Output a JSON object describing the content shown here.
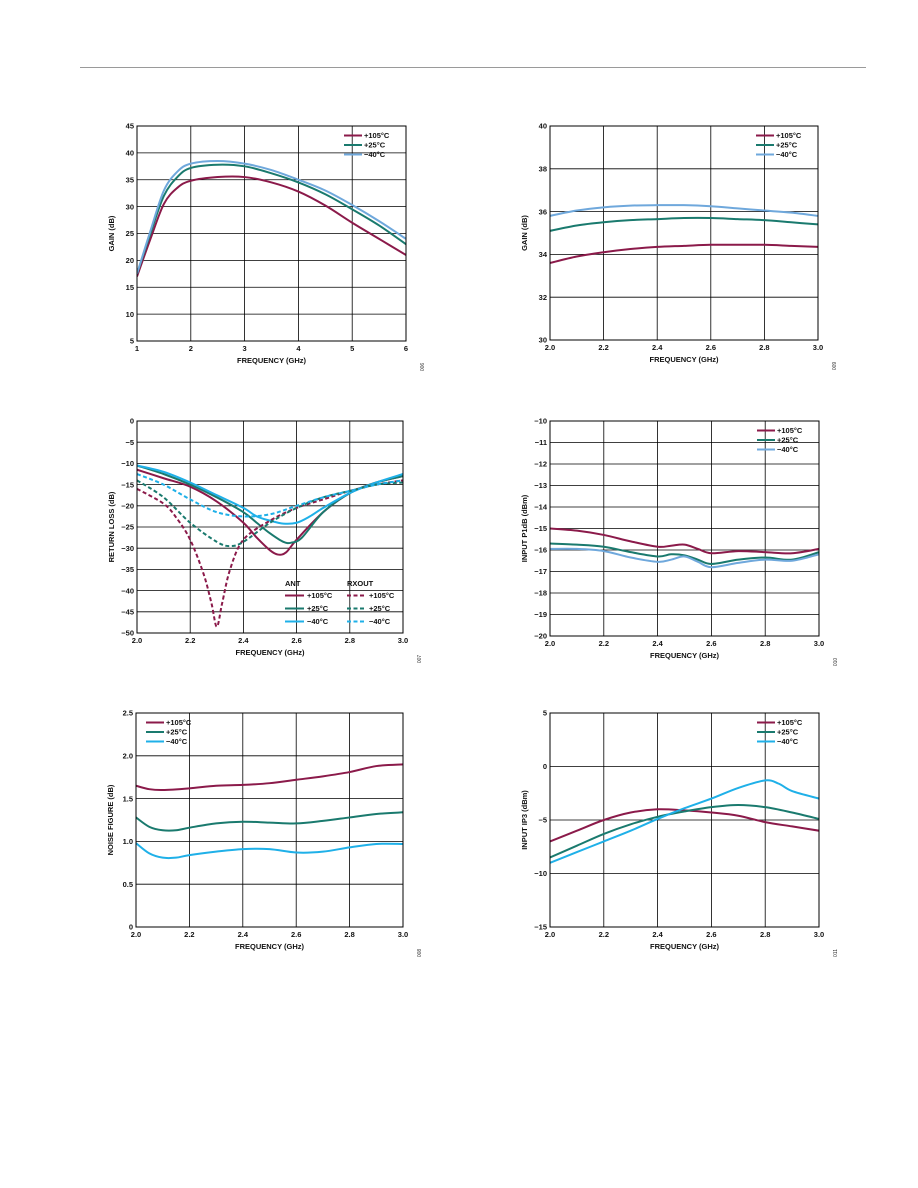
{
  "colors": {
    "hot": "#8b1a4a",
    "room": "#1a7a6e",
    "cold_light": "#6fa8dc",
    "cold_bright": "#1fb0e8",
    "grid": "#000000"
  },
  "chart_data": [
    {
      "type": "line",
      "id_label": "006",
      "xlabel": "FREQUENCY (GHz)",
      "ylabel": "GAIN (dB)",
      "xlim": [
        1,
        6
      ],
      "ylim": [
        5,
        45
      ],
      "xticks": [
        1,
        2,
        3,
        4,
        5,
        6
      ],
      "xtick_labels": [
        "1",
        "2",
        "3",
        "4",
        "5",
        "6"
      ],
      "yticks": [
        5,
        10,
        15,
        20,
        25,
        30,
        35,
        40,
        45
      ],
      "ytick_labels": [
        "5",
        "10",
        "15",
        "20",
        "25",
        "30",
        "35",
        "40",
        "45"
      ],
      "grid": true,
      "legend": {
        "position": "top-right"
      },
      "series": [
        {
          "name": "+105°C",
          "color": "#8b1a4a",
          "dash": false,
          "x": [
            1,
            1.25,
            1.5,
            1.75,
            2,
            2.5,
            3,
            3.5,
            4,
            4.5,
            5,
            5.5,
            6
          ],
          "y": [
            17,
            24,
            30.5,
            33.5,
            34.8,
            35.5,
            35.5,
            34.5,
            32.8,
            30.2,
            27,
            24,
            21
          ]
        },
        {
          "name": "+25°C",
          "color": "#1a7a6e",
          "dash": false,
          "x": [
            1,
            1.25,
            1.5,
            1.75,
            2,
            2.5,
            3,
            3.5,
            4,
            4.5,
            5,
            5.5,
            6
          ],
          "y": [
            17.5,
            25,
            32,
            35.5,
            37.2,
            37.8,
            37.5,
            36.2,
            34.5,
            32.3,
            29.5,
            26.5,
            23
          ]
        },
        {
          "name": "−40°C",
          "color": "#6fa8dc",
          "dash": false,
          "x": [
            1,
            1.25,
            1.5,
            1.75,
            2,
            2.5,
            3,
            3.5,
            4,
            4.5,
            5,
            5.5,
            6
          ],
          "y": [
            17.5,
            25.5,
            33,
            36.5,
            38,
            38.5,
            38,
            36.8,
            35,
            33,
            30.3,
            27.3,
            24
          ]
        }
      ]
    },
    {
      "type": "line",
      "id_label": "009",
      "xlabel": "FREQUENCY (GHz)",
      "ylabel": "GAIN (dB)",
      "xlim": [
        2.0,
        3.0
      ],
      "ylim": [
        30,
        40
      ],
      "xticks": [
        2.0,
        2.2,
        2.4,
        2.6,
        2.8,
        3.0
      ],
      "xtick_labels": [
        "2.0",
        "2.2",
        "2.4",
        "2.6",
        "2.8",
        "3.0"
      ],
      "yticks": [
        30,
        32,
        34,
        36,
        38,
        40
      ],
      "ytick_labels": [
        "30",
        "32",
        "34",
        "36",
        "38",
        "40"
      ],
      "grid": true,
      "legend": {
        "position": "top-right"
      },
      "series": [
        {
          "name": "+105°C",
          "color": "#8b1a4a",
          "dash": false,
          "x": [
            2.0,
            2.1,
            2.2,
            2.3,
            2.4,
            2.5,
            2.6,
            2.7,
            2.8,
            2.9,
            3.0
          ],
          "y": [
            33.6,
            33.9,
            34.1,
            34.25,
            34.35,
            34.4,
            34.45,
            34.45,
            34.45,
            34.4,
            34.35
          ]
        },
        {
          "name": "+25°C",
          "color": "#1a7a6e",
          "dash": false,
          "x": [
            2.0,
            2.1,
            2.2,
            2.3,
            2.4,
            2.5,
            2.6,
            2.7,
            2.8,
            2.9,
            3.0
          ],
          "y": [
            35.1,
            35.35,
            35.5,
            35.6,
            35.65,
            35.7,
            35.7,
            35.65,
            35.6,
            35.5,
            35.4
          ]
        },
        {
          "name": "−40°C",
          "color": "#6fa8dc",
          "dash": false,
          "x": [
            2.0,
            2.1,
            2.2,
            2.3,
            2.4,
            2.5,
            2.6,
            2.7,
            2.8,
            2.9,
            3.0
          ],
          "y": [
            35.8,
            36.05,
            36.2,
            36.28,
            36.3,
            36.3,
            36.25,
            36.15,
            36.05,
            35.95,
            35.8
          ]
        }
      ]
    },
    {
      "type": "line",
      "id_label": "007",
      "xlabel": "FREQUENCY (GHz)",
      "ylabel": "RETURN LOSS (dB)",
      "xlim": [
        2.0,
        3.0
      ],
      "ylim": [
        -50,
        0
      ],
      "xticks": [
        2.0,
        2.2,
        2.4,
        2.6,
        2.8,
        3.0
      ],
      "xtick_labels": [
        "2.0",
        "2.2",
        "2.4",
        "2.6",
        "2.8",
        "3.0"
      ],
      "yticks": [
        -50,
        -45,
        -40,
        -35,
        -30,
        -25,
        -20,
        -15,
        -10,
        -5,
        0
      ],
      "ytick_labels": [
        "−50",
        "−45",
        "−40",
        "−35",
        "−30",
        "−25",
        "−20",
        "−15",
        "−10",
        "−5",
        "0"
      ],
      "grid": true,
      "legend": {
        "position": "bottom-right",
        "columns": [
          "ANT",
          "RXOUT"
        ]
      },
      "series": [
        {
          "name": "+105°C",
          "group": "ANT",
          "color": "#8b1a4a",
          "dash": false,
          "x": [
            2.0,
            2.1,
            2.2,
            2.3,
            2.4,
            2.45,
            2.5,
            2.53,
            2.56,
            2.6,
            2.7,
            2.8,
            2.9,
            3.0
          ],
          "y": [
            -11.5,
            -13.5,
            -15.5,
            -19,
            -24,
            -27.5,
            -30.5,
            -31.5,
            -31,
            -28,
            -21.5,
            -17,
            -14.5,
            -13
          ]
        },
        {
          "name": "+25°C",
          "group": "ANT",
          "color": "#1a7a6e",
          "dash": false,
          "x": [
            2.0,
            2.1,
            2.2,
            2.3,
            2.4,
            2.45,
            2.5,
            2.55,
            2.58,
            2.62,
            2.7,
            2.8,
            2.9,
            3.0
          ],
          "y": [
            -10.5,
            -12.5,
            -15,
            -18,
            -21.5,
            -24,
            -26.5,
            -28.5,
            -28.7,
            -27.5,
            -21.5,
            -17,
            -14.5,
            -13
          ]
        },
        {
          "name": "−40°C",
          "group": "ANT",
          "color": "#1fb0e8",
          "dash": false,
          "x": [
            2.0,
            2.1,
            2.2,
            2.3,
            2.4,
            2.45,
            2.5,
            2.55,
            2.6,
            2.65,
            2.7,
            2.8,
            2.9,
            3.0
          ],
          "y": [
            -10.5,
            -12,
            -14.5,
            -17.5,
            -20.5,
            -22.5,
            -23.5,
            -24.2,
            -24,
            -22.5,
            -20.5,
            -17,
            -14.5,
            -12.5
          ]
        },
        {
          "name": "+105°C",
          "group": "RXOUT",
          "color": "#8b1a4a",
          "dash": true,
          "x": [
            2.0,
            2.1,
            2.15,
            2.2,
            2.25,
            2.28,
            2.3,
            2.32,
            2.35,
            2.4,
            2.5,
            2.6,
            2.7,
            2.8,
            2.9,
            3.0
          ],
          "y": [
            -16,
            -19.5,
            -23,
            -28,
            -36,
            -43,
            -48.5,
            -43,
            -35,
            -28,
            -23.5,
            -20.5,
            -18.5,
            -16.5,
            -15,
            -14
          ]
        },
        {
          "name": "+25°C",
          "group": "RXOUT",
          "color": "#1a7a6e",
          "dash": true,
          "x": [
            2.0,
            2.1,
            2.2,
            2.3,
            2.35,
            2.4,
            2.5,
            2.6,
            2.7,
            2.8,
            2.9,
            3.0
          ],
          "y": [
            -14,
            -18,
            -24,
            -28.5,
            -29.5,
            -28.5,
            -24,
            -20.5,
            -18,
            -16.5,
            -15,
            -14.5
          ]
        },
        {
          "name": "−40°C",
          "group": "RXOUT",
          "color": "#1fb0e8",
          "dash": true,
          "x": [
            2.0,
            2.1,
            2.2,
            2.3,
            2.4,
            2.5,
            2.6,
            2.7,
            2.8,
            2.9,
            3.0
          ],
          "y": [
            -12.5,
            -15,
            -18.5,
            -21.5,
            -22.5,
            -22,
            -20,
            -18,
            -16.5,
            -15,
            -14
          ]
        }
      ]
    },
    {
      "type": "line",
      "id_label": "010",
      "xlabel": "FREQUENCY (GHz)",
      "ylabel": "INPUT P1dB (dBm)",
      "xlim": [
        2.0,
        3.0
      ],
      "ylim": [
        -20,
        -10
      ],
      "xticks": [
        2.0,
        2.2,
        2.4,
        2.6,
        2.8,
        3.0
      ],
      "xtick_labels": [
        "2.0",
        "2.2",
        "2.4",
        "2.6",
        "2.8",
        "3.0"
      ],
      "yticks": [
        -20,
        -19,
        -18,
        -17,
        -16,
        -15,
        -14,
        -13,
        -12,
        -11,
        -10
      ],
      "ytick_labels": [
        "−20",
        "−19",
        "−18",
        "−17",
        "−16",
        "−15",
        "−14",
        "−13",
        "−12",
        "−11",
        "−10"
      ],
      "grid": true,
      "legend": {
        "position": "top-right"
      },
      "series": [
        {
          "name": "+105°C",
          "color": "#8b1a4a",
          "dash": false,
          "x": [
            2.0,
            2.1,
            2.2,
            2.3,
            2.4,
            2.45,
            2.5,
            2.55,
            2.6,
            2.7,
            2.8,
            2.9,
            3.0
          ],
          "y": [
            -15.0,
            -15.1,
            -15.3,
            -15.6,
            -15.85,
            -15.8,
            -15.75,
            -15.95,
            -16.15,
            -16.05,
            -16.1,
            -16.15,
            -15.95
          ]
        },
        {
          "name": "+25°C",
          "color": "#1a7a6e",
          "dash": false,
          "x": [
            2.0,
            2.1,
            2.2,
            2.3,
            2.4,
            2.45,
            2.5,
            2.55,
            2.6,
            2.7,
            2.8,
            2.9,
            3.0
          ],
          "y": [
            -15.7,
            -15.75,
            -15.85,
            -16.1,
            -16.3,
            -16.2,
            -16.25,
            -16.45,
            -16.65,
            -16.45,
            -16.35,
            -16.45,
            -16.1
          ]
        },
        {
          "name": "−40°C",
          "color": "#6fa8dc",
          "dash": false,
          "x": [
            2.0,
            2.1,
            2.2,
            2.3,
            2.4,
            2.45,
            2.5,
            2.55,
            2.6,
            2.7,
            2.8,
            2.9,
            3.0
          ],
          "y": [
            -15.95,
            -15.95,
            -16.05,
            -16.35,
            -16.55,
            -16.45,
            -16.3,
            -16.55,
            -16.8,
            -16.6,
            -16.45,
            -16.5,
            -16.2
          ]
        }
      ]
    },
    {
      "type": "line",
      "id_label": "008",
      "xlabel": "FREQUENCY (GHz)",
      "ylabel": "NOISE FIGURE (dB)",
      "xlim": [
        2.0,
        3.0
      ],
      "ylim": [
        0,
        2.5
      ],
      "xticks": [
        2.0,
        2.2,
        2.4,
        2.6,
        2.8,
        3.0
      ],
      "xtick_labels": [
        "2.0",
        "2.2",
        "2.4",
        "2.6",
        "2.8",
        "3.0"
      ],
      "yticks": [
        0,
        0.5,
        1.0,
        1.5,
        2.0,
        2.5
      ],
      "ytick_labels": [
        "0",
        "0.5",
        "1.0",
        "1.5",
        "2.0",
        "2.5"
      ],
      "grid": true,
      "legend": {
        "position": "top-left"
      },
      "series": [
        {
          "name": "+105°C",
          "color": "#8b1a4a",
          "dash": false,
          "x": [
            2.0,
            2.05,
            2.1,
            2.2,
            2.3,
            2.4,
            2.5,
            2.6,
            2.7,
            2.8,
            2.9,
            3.0
          ],
          "y": [
            1.65,
            1.61,
            1.6,
            1.62,
            1.65,
            1.66,
            1.68,
            1.72,
            1.76,
            1.81,
            1.88,
            1.9
          ]
        },
        {
          "name": "+25°C",
          "color": "#1a7a6e",
          "dash": false,
          "x": [
            2.0,
            2.05,
            2.1,
            2.15,
            2.2,
            2.3,
            2.4,
            2.5,
            2.6,
            2.7,
            2.8,
            2.9,
            3.0
          ],
          "y": [
            1.28,
            1.17,
            1.13,
            1.13,
            1.16,
            1.21,
            1.23,
            1.22,
            1.21,
            1.24,
            1.28,
            1.32,
            1.34
          ]
        },
        {
          "name": "−40°C",
          "color": "#1fb0e8",
          "dash": false,
          "x": [
            2.0,
            2.05,
            2.1,
            2.15,
            2.2,
            2.3,
            2.4,
            2.5,
            2.6,
            2.7,
            2.8,
            2.9,
            3.0
          ],
          "y": [
            0.98,
            0.86,
            0.81,
            0.81,
            0.84,
            0.88,
            0.91,
            0.91,
            0.87,
            0.88,
            0.93,
            0.97,
            0.97
          ]
        }
      ]
    },
    {
      "type": "line",
      "id_label": "011",
      "xlabel": "FREQUENCY (GHz)",
      "ylabel": "INPUT IP3 (dBm)",
      "xlim": [
        2.0,
        3.0
      ],
      "ylim": [
        -15,
        5
      ],
      "xticks": [
        2.0,
        2.2,
        2.4,
        2.6,
        2.8,
        3.0
      ],
      "xtick_labels": [
        "2.0",
        "2.2",
        "2.4",
        "2.6",
        "2.8",
        "3.0"
      ],
      "yticks": [
        -15,
        -10,
        -5,
        0,
        5
      ],
      "ytick_labels": [
        "−15",
        "−10",
        "−5",
        "0",
        "5"
      ],
      "grid": true,
      "legend": {
        "position": "top-right"
      },
      "series": [
        {
          "name": "+105°C",
          "color": "#8b1a4a",
          "dash": false,
          "x": [
            2.0,
            2.1,
            2.2,
            2.3,
            2.4,
            2.5,
            2.6,
            2.7,
            2.8,
            2.9,
            3.0
          ],
          "y": [
            -7,
            -6,
            -5,
            -4.3,
            -4.0,
            -4.1,
            -4.3,
            -4.6,
            -5.2,
            -5.6,
            -6.0
          ]
        },
        {
          "name": "+25°C",
          "color": "#1a7a6e",
          "dash": false,
          "x": [
            2.0,
            2.1,
            2.2,
            2.3,
            2.4,
            2.5,
            2.6,
            2.7,
            2.8,
            2.9,
            3.0
          ],
          "y": [
            -8.5,
            -7.4,
            -6.3,
            -5.4,
            -4.7,
            -4.2,
            -3.8,
            -3.6,
            -3.8,
            -4.3,
            -4.9
          ]
        },
        {
          "name": "−40°C",
          "color": "#1fb0e8",
          "dash": false,
          "x": [
            2.0,
            2.1,
            2.2,
            2.3,
            2.4,
            2.5,
            2.6,
            2.7,
            2.8,
            2.85,
            2.9,
            3.0
          ],
          "y": [
            -9,
            -8,
            -7,
            -6,
            -4.9,
            -3.9,
            -3,
            -2.0,
            -1.3,
            -1.6,
            -2.3,
            -3.0
          ]
        }
      ]
    }
  ]
}
